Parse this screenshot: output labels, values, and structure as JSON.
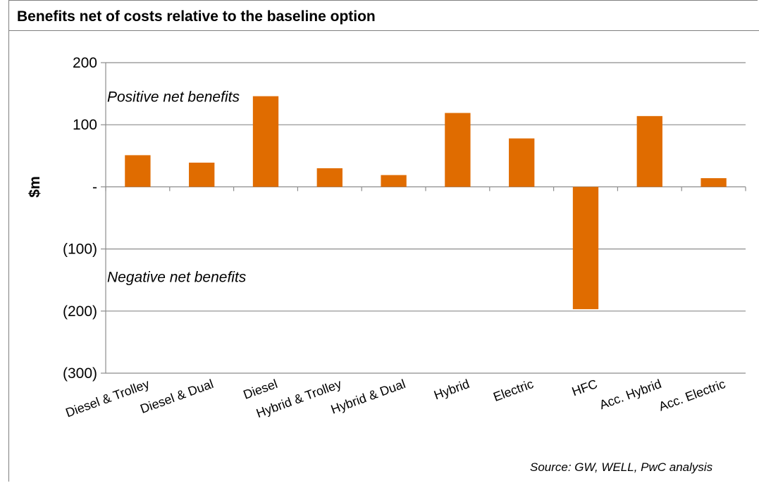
{
  "chart_data": {
    "type": "bar",
    "title": "Benefits net of costs relative to the baseline option",
    "ylabel": "$m",
    "xlabel": "",
    "categories": [
      "Diesel & Trolley",
      "Diesel & Dual",
      "Diesel",
      "Hybrid & Trolley",
      "Hybrid & Dual",
      "Hybrid",
      "Electric",
      "HFC",
      "Acc. Hybrid",
      "Acc. Electric"
    ],
    "values": [
      51,
      39,
      146,
      30,
      19,
      119,
      78,
      -197,
      114,
      14
    ],
    "ylim": [
      -300,
      200
    ],
    "yticks": [
      200,
      100,
      0,
      -100,
      -200,
      -300
    ],
    "ytick_labels": [
      "200",
      "100",
      "-",
      "(100)",
      "(200)",
      "(300)"
    ],
    "grid": true,
    "bar_color": "#E06C00",
    "annotations": [
      {
        "text": "Positive net benefits",
        "y": 145
      },
      {
        "text": "Negative net benefits",
        "y": -145
      }
    ],
    "source": "Source: GW, WELL, PwC analysis"
  }
}
